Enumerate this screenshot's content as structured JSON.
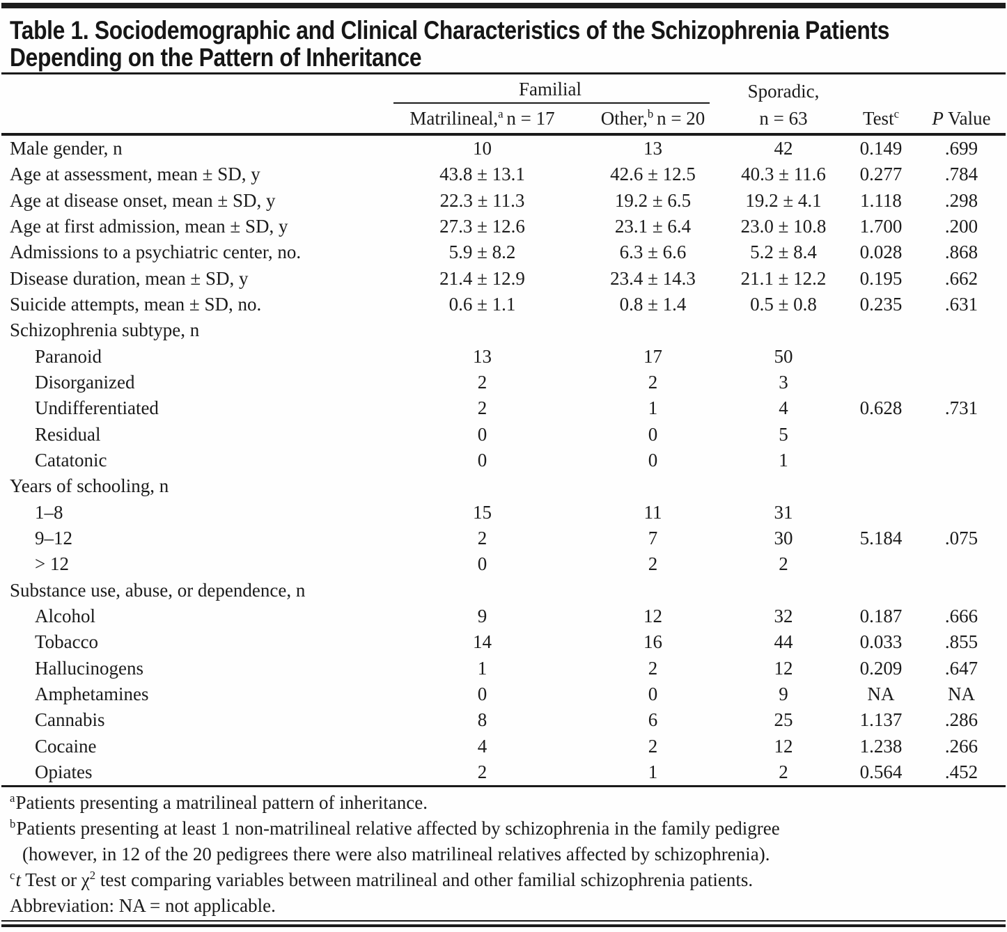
{
  "title": {
    "line1": "Table 1. Sociodemographic and Clinical Characteristics of the Schizophrenia Patients",
    "line2": "Depending on the Pattern of Inheritance"
  },
  "header": {
    "group": "Familial",
    "matrilineal": {
      "name": "Matrilineal,",
      "sup": "a",
      "n": "n = 17"
    },
    "other": {
      "name": "Other,",
      "sup": "b",
      "n": "n = 20"
    },
    "sporadic": {
      "line1": "Sporadic,",
      "line2": "n = 63"
    },
    "test": {
      "name": "Test",
      "sup": "c"
    },
    "pvalue": {
      "italic": "P",
      "rest": "Value"
    }
  },
  "table": {
    "rows": [
      {
        "label": "Male gender, n",
        "indent": 0,
        "values": [
          "10",
          "13",
          "42",
          "0.149",
          ".699"
        ]
      },
      {
        "label": "Age at assessment, mean ± SD, y",
        "indent": 0,
        "values": [
          "43.8 ± 13.1",
          "42.6 ± 12.5",
          "40.3 ± 11.6",
          "0.277",
          ".784"
        ]
      },
      {
        "label": "Age at disease onset, mean ± SD, y",
        "indent": 0,
        "values": [
          "22.3 ± 11.3",
          "19.2 ± 6.5",
          "19.2 ± 4.1",
          "1.118",
          ".298"
        ]
      },
      {
        "label": "Age at first admission, mean ± SD, y",
        "indent": 0,
        "values": [
          "27.3 ± 12.6",
          "23.1 ± 6.4",
          "23.0 ± 10.8",
          "1.700",
          ".200"
        ]
      },
      {
        "label": "Admissions to a psychiatric center, no.",
        "indent": 0,
        "values": [
          "5.9 ± 8.2",
          "6.3 ± 6.6",
          "5.2 ± 8.4",
          "0.028",
          ".868"
        ]
      },
      {
        "label": "Disease duration, mean ± SD, y",
        "indent": 0,
        "values": [
          "21.4 ± 12.9",
          "23.4 ± 14.3",
          "21.1 ± 12.2",
          "0.195",
          ".662"
        ]
      },
      {
        "label": "Suicide attempts, mean ± SD, no.",
        "indent": 0,
        "values": [
          "0.6 ± 1.1",
          "0.8 ± 1.4",
          "0.5 ± 0.8",
          "0.235",
          ".631"
        ]
      },
      {
        "label": "Schizophrenia subtype, n",
        "indent": 0,
        "values": [
          "",
          "",
          "",
          "",
          ""
        ]
      },
      {
        "label": "Paranoid",
        "indent": 1,
        "values": [
          "13",
          "17",
          "50",
          "",
          ""
        ]
      },
      {
        "label": "Disorganized",
        "indent": 1,
        "values": [
          "2",
          "2",
          "3",
          "",
          ""
        ]
      },
      {
        "label": "Undifferentiated",
        "indent": 1,
        "values": [
          "2",
          "1",
          "4",
          "0.628",
          ".731"
        ]
      },
      {
        "label": "Residual",
        "indent": 1,
        "values": [
          "0",
          "0",
          "5",
          "",
          ""
        ]
      },
      {
        "label": "Catatonic",
        "indent": 1,
        "values": [
          "0",
          "0",
          "1",
          "",
          ""
        ]
      },
      {
        "label": "Years of schooling, n",
        "indent": 0,
        "values": [
          "",
          "",
          "",
          "",
          ""
        ]
      },
      {
        "label": "1–8",
        "indent": 1,
        "values": [
          "15",
          "11",
          "31",
          "",
          ""
        ]
      },
      {
        "label": "9–12",
        "indent": 1,
        "values": [
          "2",
          "7",
          "30",
          "5.184",
          ".075"
        ]
      },
      {
        "label": "> 12",
        "indent": 1,
        "values": [
          "0",
          "2",
          "2",
          "",
          ""
        ]
      },
      {
        "label": "Substance use, abuse, or dependence, n",
        "indent": 0,
        "values": [
          "",
          "",
          "",
          "",
          ""
        ]
      },
      {
        "label": "Alcohol",
        "indent": 1,
        "values": [
          "9",
          "12",
          "32",
          "0.187",
          ".666"
        ]
      },
      {
        "label": "Tobacco",
        "indent": 1,
        "values": [
          "14",
          "16",
          "44",
          "0.033",
          ".855"
        ]
      },
      {
        "label": "Hallucinogens",
        "indent": 1,
        "values": [
          "1",
          "2",
          "12",
          "0.209",
          ".647"
        ]
      },
      {
        "label": "Amphetamines",
        "indent": 1,
        "values": [
          "0",
          "0",
          "9",
          "NA",
          "NA"
        ]
      },
      {
        "label": "Cannabis",
        "indent": 1,
        "values": [
          "8",
          "6",
          "25",
          "1.137",
          ".286"
        ]
      },
      {
        "label": "Cocaine",
        "indent": 1,
        "values": [
          "4",
          "2",
          "12",
          "1.238",
          ".266"
        ]
      },
      {
        "label": "Opiates",
        "indent": 1,
        "values": [
          "2",
          "1",
          "2",
          "0.564",
          ".452"
        ]
      }
    ]
  },
  "footnotes": {
    "a": {
      "marker": "a",
      "text": "Patients presenting a matrilineal pattern of inheritance."
    },
    "b": {
      "marker": "b",
      "line1": "Patients presenting at least 1 non-matrilineal relative affected by schizophrenia in the family pedigree",
      "line2": "(however, in 12 of the 20 pedigrees there were also matrilineal relatives affected by schizophrenia)."
    },
    "c": {
      "marker": "c",
      "italic": "t",
      "text1": " Test or χ",
      "sup": "2",
      "text2": " test comparing variables between matrilineal and other familial schizophrenia patients."
    },
    "abbr": "Abbreviation: NA = not applicable."
  }
}
